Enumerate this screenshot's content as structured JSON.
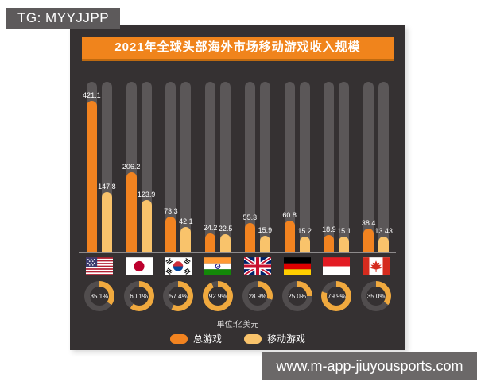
{
  "watermarks": {
    "top_left": "TG: MYYJJPP",
    "bottom_right": "www.m-app-jiuyousports.com"
  },
  "colors": {
    "page_bg": "#ffffff",
    "panel_bg": "#353132",
    "title_bg": "#F0841C",
    "title_text": "#ffffff",
    "bar_track": "#5B5758",
    "axis_line": "#8D8A8B",
    "donut_fill": "#F0A93E",
    "donut_track": "#514D4E",
    "unit_text": "#D9D7D7",
    "watermark_top_bg": "#5D5A5B",
    "watermark_bottom_bg": "#6B6868"
  },
  "chart_data": {
    "type": "bar",
    "title": "2021年全球头部海外市场移动游戏收入规模",
    "unit_label": "单位:亿美元",
    "legend_position": "bottom",
    "grid": false,
    "ylim": [
      0,
      450
    ],
    "categories": [
      "United States",
      "Japan",
      "South Korea",
      "India",
      "United Kingdom",
      "Germany",
      "Indonesia",
      "Canada"
    ],
    "flag_icons": [
      "us",
      "jp",
      "kr",
      "in",
      "gb",
      "de",
      "id",
      "ca"
    ],
    "series": [
      {
        "name": "总游戏",
        "color": "#F28320",
        "values": [
          421.1,
          206.2,
          73.3,
          24.2,
          55.3,
          60.8,
          18.9,
          38.4
        ]
      },
      {
        "name": "移动游戏",
        "color": "#F9C36B",
        "values": [
          147.8,
          123.9,
          42.1,
          22.5,
          15.9,
          15.2,
          15.1,
          13.43
        ]
      }
    ],
    "mobile_share_percent": [
      "35.1%",
      "60.1%",
      "57.4%",
      "92.9%",
      "28.9%",
      "25.0%",
      "79.9%",
      "35.0%"
    ]
  }
}
